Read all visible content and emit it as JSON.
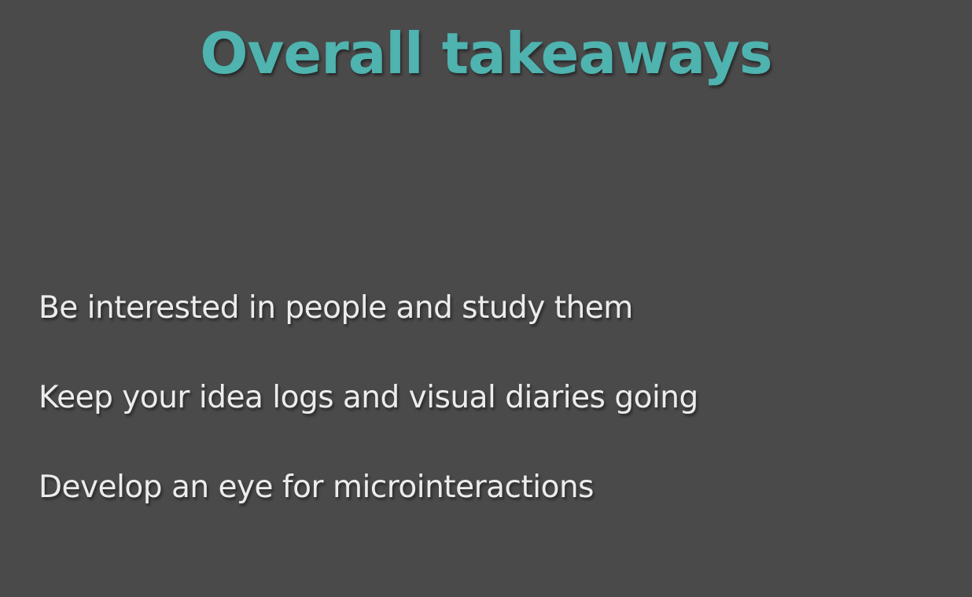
{
  "slide": {
    "title": "Overall takeaways",
    "points": [
      "Be interested in people and study them",
      "Keep your idea logs and visual diaries going",
      "Develop an eye for microinteractions"
    ]
  },
  "colors": {
    "background": "#4a4a4b",
    "title": "#4fb3af",
    "text": "#ececec"
  }
}
